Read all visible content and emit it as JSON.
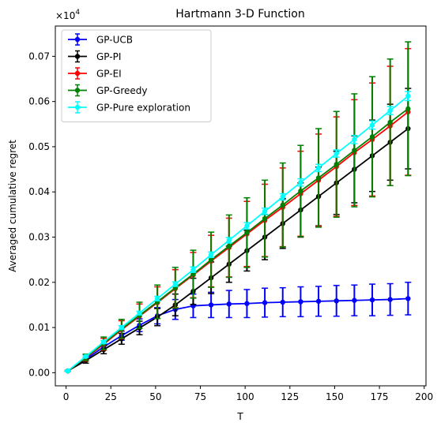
{
  "chart_data": {
    "type": "line",
    "title": "Hartmann 3-D Function",
    "xlabel": "T",
    "ylabel": "Averaged cumulative regret",
    "y_multiplier": "×10",
    "y_multiplier_exp": "4",
    "xlim": [
      -6,
      201
    ],
    "ylim": [
      -0.0029,
      0.0767
    ],
    "xticks": [
      0,
      25,
      50,
      75,
      100,
      125,
      150,
      175,
      200
    ],
    "yticks": [
      0.0,
      0.01,
      0.02,
      0.03,
      0.04,
      0.05,
      0.06,
      0.07
    ],
    "ytick_labels": [
      "0.00",
      "0.01",
      "0.02",
      "0.03",
      "0.04",
      "0.05",
      "0.06",
      "0.07"
    ],
    "grid": false,
    "legend_position": "top-left",
    "x": [
      1,
      11,
      21,
      31,
      41,
      51,
      61,
      71,
      81,
      91,
      101,
      111,
      121,
      131,
      141,
      151,
      161,
      171,
      181,
      191
    ],
    "series": [
      {
        "name": "GP-UCB",
        "color": "#0000ff",
        "values": [
          0.0004,
          0.003,
          0.0057,
          0.0082,
          0.0105,
          0.0126,
          0.014,
          0.0148,
          0.015,
          0.0152,
          0.0153,
          0.0155,
          0.0156,
          0.0157,
          0.0158,
          0.0159,
          0.016,
          0.0161,
          0.0162,
          0.0164
        ],
        "errors": [
          0.0001,
          0.0004,
          0.0007,
          0.001,
          0.0014,
          0.0018,
          0.0022,
          0.0026,
          0.0028,
          0.003,
          0.0031,
          0.0032,
          0.0032,
          0.0033,
          0.0033,
          0.0034,
          0.0034,
          0.0035,
          0.0035,
          0.0036
        ]
      },
      {
        "name": "GP-PI",
        "color": "#000000",
        "values": [
          0.0004,
          0.0027,
          0.0051,
          0.0075,
          0.0099,
          0.0123,
          0.015,
          0.018,
          0.021,
          0.024,
          0.027,
          0.03,
          0.033,
          0.036,
          0.039,
          0.042,
          0.045,
          0.048,
          0.051,
          0.054
        ],
        "errors": [
          0.0001,
          0.0006,
          0.0009,
          0.0012,
          0.0015,
          0.0019,
          0.0024,
          0.0029,
          0.0035,
          0.004,
          0.0045,
          0.005,
          0.0055,
          0.006,
          0.0065,
          0.007,
          0.0074,
          0.0079,
          0.0084,
          0.0089
        ]
      },
      {
        "name": "GP-EI",
        "color": "#ff0000",
        "values": [
          0.0004,
          0.0033,
          0.0063,
          0.0095,
          0.0125,
          0.0155,
          0.0186,
          0.0216,
          0.0247,
          0.0277,
          0.0307,
          0.0337,
          0.0366,
          0.0396,
          0.0426,
          0.0456,
          0.0487,
          0.0516,
          0.0546,
          0.0577
        ],
        "errors": [
          0.0001,
          0.0007,
          0.0013,
          0.002,
          0.0027,
          0.0035,
          0.0042,
          0.005,
          0.0057,
          0.0065,
          0.0072,
          0.008,
          0.0087,
          0.0094,
          0.0102,
          0.011,
          0.0117,
          0.0125,
          0.0132,
          0.014
        ]
      },
      {
        "name": "GP-Greedy",
        "color": "#008000",
        "values": [
          0.0004,
          0.0034,
          0.0065,
          0.0097,
          0.0127,
          0.0157,
          0.0188,
          0.0218,
          0.025,
          0.028,
          0.031,
          0.0341,
          0.0371,
          0.0402,
          0.0431,
          0.0461,
          0.0492,
          0.0522,
          0.0554,
          0.0584
        ],
        "errors": [
          0.0001,
          0.0007,
          0.0014,
          0.0021,
          0.0029,
          0.0037,
          0.0045,
          0.0053,
          0.0061,
          0.0069,
          0.0077,
          0.0085,
          0.0093,
          0.0101,
          0.0109,
          0.0117,
          0.0125,
          0.0133,
          0.014,
          0.0148
        ]
      },
      {
        "name": "GP-Pure exploration",
        "color": "#00ffff",
        "values": [
          0.0004,
          0.0036,
          0.0068,
          0.01,
          0.0132,
          0.0164,
          0.0196,
          0.0228,
          0.0261,
          0.0293,
          0.0325,
          0.0357,
          0.0389,
          0.0421,
          0.0453,
          0.0485,
          0.0516,
          0.0548,
          0.058,
          0.0612
        ],
        "errors": [
          0.0001,
          0.0002,
          0.0003,
          0.0004,
          0.0004,
          0.0005,
          0.0005,
          0.0006,
          0.0006,
          0.0006,
          0.0007,
          0.0007,
          0.0007,
          0.0008,
          0.0008,
          0.0008,
          0.0009,
          0.0009,
          0.0009,
          0.001
        ]
      }
    ]
  }
}
